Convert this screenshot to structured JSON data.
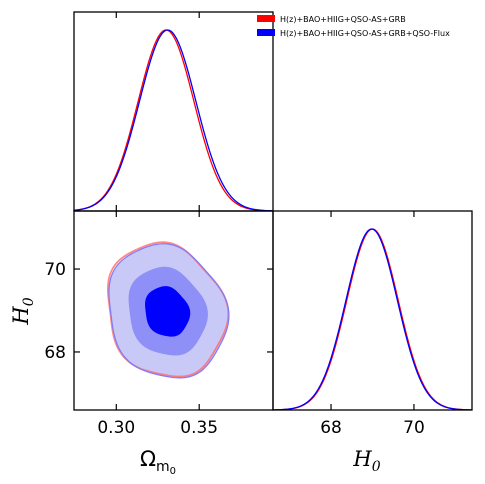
{
  "chart_data": {
    "type": "corner",
    "legend_placement": "top-right",
    "legend": [
      {
        "label": "H(z)+BAO+HIIG+QSO-AS+GRB",
        "color": "#ff0000"
      },
      {
        "label": "H(z)+BAO+HIIG+QSO-AS+GRB+QSO-Flux",
        "color": "#0000ff"
      }
    ],
    "parameters": [
      {
        "name": "Omega_m0",
        "label_main": "Ω",
        "label_sub": "m",
        "label_subsub": "0",
        "range": [
          0.2745,
          0.3945
        ],
        "ticks": [
          0.3,
          0.35
        ],
        "tick_labels": [
          "0.30",
          "0.35"
        ]
      },
      {
        "name": "H0",
        "label_main": "H",
        "label_sub": "0",
        "range": [
          66.6,
          71.4
        ],
        "ticks": [
          68,
          70
        ],
        "tick_labels": [
          "68",
          "70"
        ]
      }
    ],
    "marginals": {
      "Omega_m0": [
        {
          "series": "H(z)+BAO+HIIG+QSO-AS+GRB",
          "color": "#ff0000",
          "mean": 0.33,
          "sigma": 0.0168
        },
        {
          "series": "H(z)+BAO+HIIG+QSO-AS+GRB+QSO-Flux",
          "color": "#0000ff",
          "mean": 0.331,
          "sigma": 0.017
        }
      ],
      "H0": [
        {
          "series": "H(z)+BAO+HIIG+QSO-AS+GRB",
          "color": "#ff0000",
          "mean": 69.0,
          "sigma": 0.62
        },
        {
          "series": "H(z)+BAO+HIIG+QSO-AS+GRB+QSO-Flux",
          "color": "#0000ff",
          "mean": 68.98,
          "sigma": 0.62
        }
      ]
    },
    "contours_2d": {
      "center": [
        0.3305,
        68.97
      ],
      "sigma": [
        0.0138,
        0.62
      ],
      "correlation": -0.12,
      "levels": [
        1,
        2
      ],
      "fill_colors": [
        "#0000ff",
        "#8f8ff8",
        "#c9c9f7"
      ]
    }
  }
}
